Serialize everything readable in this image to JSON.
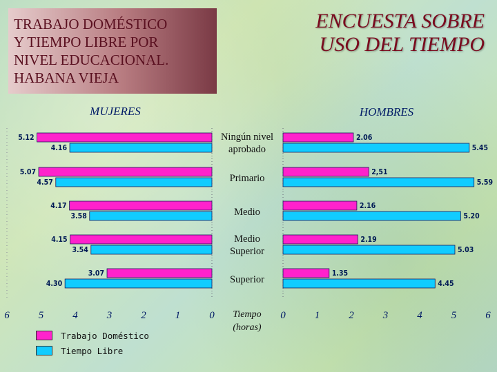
{
  "title_lines": [
    "TRABAJO DOMÉSTICO",
    "Y TIEMPO LIBRE POR",
    "NIVEL EDUCACIONAL.",
    "HABANA VIEJA"
  ],
  "main_title_lines": [
    "ENCUESTA SOBRE",
    "USO DEL TIEMPO"
  ],
  "colors": {
    "trabajo": "#ff22cc",
    "libre": "#11ccff"
  },
  "chart_data": {
    "type": "bar",
    "orientation": "horizontal",
    "panels": [
      {
        "name": "MUJERES",
        "direction": "left"
      },
      {
        "name": "HOMBRES",
        "direction": "right"
      }
    ],
    "categories": [
      {
        "lines": [
          "Ningún nivel",
          "aprobado"
        ]
      },
      {
        "lines": [
          "Primario"
        ]
      },
      {
        "lines": [
          "Medio"
        ]
      },
      {
        "lines": [
          "Medio",
          "Superior"
        ]
      },
      {
        "lines": [
          "Superior"
        ]
      }
    ],
    "series": [
      {
        "name": "Trabajo Doméstico",
        "mujeres": [
          5.12,
          5.07,
          4.17,
          4.15,
          3.07
        ],
        "mujeres_labels": [
          "5.12",
          "5.07",
          "4.17",
          "4.15",
          "3.07"
        ],
        "hombres": [
          2.06,
          2.51,
          2.16,
          2.19,
          1.35
        ],
        "hombres_labels": [
          "2.06",
          "2,51",
          "2.16",
          "2.19",
          "1.35"
        ]
      },
      {
        "name": "Tiempo Libre",
        "mujeres": [
          4.16,
          4.57,
          3.58,
          3.54,
          4.3
        ],
        "mujeres_labels": [
          "4.16",
          "4.57",
          "3.58",
          "3.54",
          "4.30"
        ],
        "hombres": [
          5.45,
          5.59,
          5.2,
          5.03,
          4.45
        ],
        "hombres_labels": [
          "5.45",
          "5.59",
          "5.20",
          "5.03",
          "4.45"
        ]
      }
    ],
    "xlim": [
      0,
      6
    ],
    "ticks": [
      "6",
      "5",
      "4",
      "3",
      "2",
      "1",
      "0"
    ],
    "ticks_right": [
      "0",
      "1",
      "2",
      "3",
      "4",
      "5",
      "6"
    ],
    "axis_label_lines": [
      "Tiempo",
      "(horas)"
    ],
    "legend": [
      "Trabajo Doméstico",
      "Tiempo Libre"
    ]
  }
}
